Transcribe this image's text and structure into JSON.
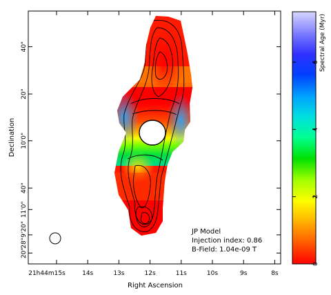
{
  "chart_data": {
    "type": "heatmap",
    "xlabel": "Right Ascension",
    "ylabel": "Declination",
    "x_ticks": [
      {
        "label": "21h44m15s",
        "value": 15
      },
      {
        "label": "14s",
        "value": 14
      },
      {
        "label": "13s",
        "value": 13
      },
      {
        "label": "12s",
        "value": 12
      },
      {
        "label": "11s",
        "value": 11
      },
      {
        "label": "10s",
        "value": 10
      },
      {
        "label": "9s",
        "value": 9
      },
      {
        "label": "8s",
        "value": 8
      }
    ],
    "y_ticks": [
      {
        "label": "28°9'20\"",
        "frac": 0.115
      },
      {
        "label": "40\"",
        "frac": 0.3
      },
      {
        "label": "10'0\"",
        "frac": 0.487
      },
      {
        "label": "20\"",
        "frac": 0.672
      },
      {
        "label": "40\"",
        "frac": 0.859
      },
      {
        "label": "11'0\"",
        "frac": 0.215
      },
      {
        "label": "20\"",
        "frac": 0.043
      }
    ],
    "colorbar": {
      "label": "Spectral Age (Myr)",
      "min": 0,
      "max": 7.5,
      "ticks": [
        0,
        2,
        4,
        6
      ],
      "colors": [
        "#ff0000",
        "#ff5a00",
        "#ffb000",
        "#ffff00",
        "#a0ff00",
        "#00e000",
        "#00ff90",
        "#00e0e0",
        "#00a0ff",
        "#0040ff",
        "#3030ff",
        "#8080ff",
        "#d8d8ff"
      ]
    },
    "grid": false,
    "annotations": [
      "JP Model",
      "Injection index: 0.86",
      "B-Field: 1.04e-09 T"
    ]
  }
}
